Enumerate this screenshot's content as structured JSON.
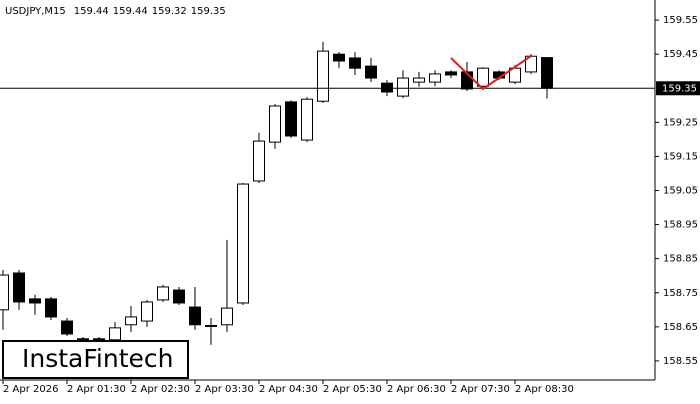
{
  "chart_data": {
    "type": "candlestick",
    "title": "USDJPY,M15",
    "header_values": [
      159.44,
      159.44,
      159.32,
      159.35
    ],
    "watermark": "InstaFintech",
    "categories": [
      "2 Apr 2026",
      null,
      null,
      null,
      "2 Apr 01:30",
      null,
      null,
      null,
      "2 Apr 02:30",
      null,
      null,
      null,
      "2 Apr 03:30",
      null,
      null,
      null,
      "2 Apr 04:30",
      null,
      null,
      null,
      "2 Apr 05:30",
      null,
      null,
      null,
      "2 Apr 06:30",
      null,
      null,
      null,
      "2 Apr 07:30",
      null,
      null,
      null,
      "2 Apr 08:30",
      null,
      null
    ],
    "open": [
      158.7,
      158.808,
      158.732,
      158.732,
      158.667,
      158.615,
      158.612,
      158.612,
      158.656,
      158.667,
      158.729,
      158.758,
      158.708,
      158.654,
      158.656,
      158.72,
      159.078,
      159.192,
      159.31,
      159.198,
      159.312,
      159.45,
      159.439,
      159.415,
      159.365,
      159.327,
      159.368,
      159.368,
      159.398,
      159.398,
      159.356,
      159.398,
      159.368,
      159.398,
      159.44
    ],
    "high": [
      158.817,
      158.817,
      158.744,
      158.738,
      158.676,
      158.62,
      158.62,
      158.664,
      158.711,
      158.729,
      158.773,
      158.767,
      158.767,
      158.676,
      158.905,
      159.072,
      159.219,
      159.304,
      159.315,
      159.324,
      159.486,
      159.456,
      159.456,
      159.439,
      159.374,
      159.403,
      159.398,
      159.403,
      159.403,
      159.427,
      159.412,
      159.403,
      159.418,
      159.45,
      159.44
    ],
    "low": [
      158.641,
      158.7,
      158.685,
      158.67,
      158.623,
      158.597,
      158.597,
      158.597,
      158.635,
      158.65,
      158.723,
      158.714,
      158.641,
      158.597,
      158.635,
      158.714,
      159.072,
      159.172,
      159.204,
      159.192,
      159.307,
      159.409,
      159.389,
      159.368,
      159.327,
      159.321,
      159.354,
      159.356,
      159.38,
      159.342,
      159.351,
      159.374,
      159.362,
      159.392,
      159.32
    ],
    "close": [
      158.802,
      158.723,
      158.72,
      158.679,
      158.629,
      158.612,
      158.615,
      158.647,
      158.679,
      158.723,
      158.767,
      158.72,
      158.656,
      158.653,
      158.705,
      159.069,
      159.195,
      159.298,
      159.21,
      159.318,
      159.459,
      159.43,
      159.409,
      159.38,
      159.339,
      159.38,
      159.38,
      159.392,
      159.389,
      159.348,
      159.409,
      159.38,
      159.409,
      159.444,
      159.35
    ],
    "up_color": "#ffffff",
    "down_color": "#000000",
    "pattern_color": "#e31b1b",
    "current_price": 159.35,
    "ylim": [
      158.494,
      159.609
    ],
    "yticks": [
      159.55,
      159.45,
      159.25,
      159.15,
      159.05,
      158.95,
      158.85,
      158.75,
      158.65,
      158.55
    ]
  }
}
